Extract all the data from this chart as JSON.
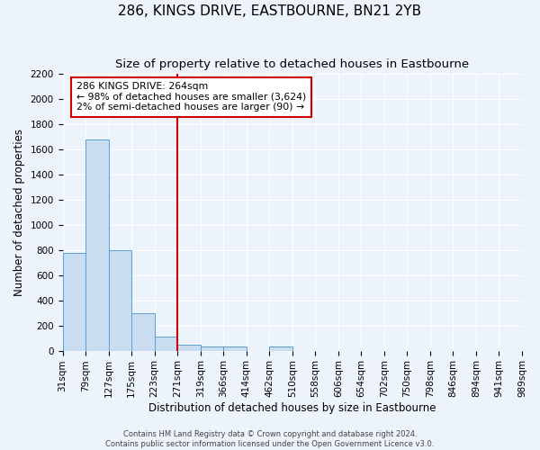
{
  "title": "286, KINGS DRIVE, EASTBOURNE, BN21 2YB",
  "subtitle": "Size of property relative to detached houses in Eastbourne",
  "xlabel": "Distribution of detached houses by size in Eastbourne",
  "ylabel": "Number of detached properties",
  "bar_heights": [
    780,
    1680,
    795,
    295,
    115,
    45,
    35,
    35,
    0,
    30,
    0,
    0,
    0,
    0,
    0,
    0,
    0,
    0,
    0,
    0
  ],
  "bar_color": "#c8ddf0",
  "bar_edge_color": "#5a9fd4",
  "vline_color": "#cc0000",
  "annotation_title": "286 KINGS DRIVE: 264sqm",
  "annotation_line1": "← 98% of detached houses are smaller (3,624)",
  "annotation_line2": "2% of semi-detached houses are larger (90) →",
  "annotation_box_color": "#ffffff",
  "annotation_box_edge_color": "#cc0000",
  "ylim": [
    0,
    2200
  ],
  "yticks": [
    0,
    200,
    400,
    600,
    800,
    1000,
    1200,
    1400,
    1600,
    1800,
    2000,
    2200
  ],
  "tick_labels": [
    "31sqm",
    "79sqm",
    "127sqm",
    "175sqm",
    "223sqm",
    "271sqm",
    "319sqm",
    "366sqm",
    "414sqm",
    "462sqm",
    "510sqm",
    "558sqm",
    "606sqm",
    "654sqm",
    "702sqm",
    "750sqm",
    "798sqm",
    "846sqm",
    "894sqm",
    "941sqm",
    "989sqm"
  ],
  "footer_line1": "Contains HM Land Registry data © Crown copyright and database right 2024.",
  "footer_line2": "Contains public sector information licensed under the Open Government Licence v3.0.",
  "bg_color": "#edf3fb",
  "grid_color": "#ffffff",
  "title_fontsize": 11,
  "subtitle_fontsize": 9.5,
  "axis_fontsize": 8.5,
  "tick_fontsize": 7.5
}
